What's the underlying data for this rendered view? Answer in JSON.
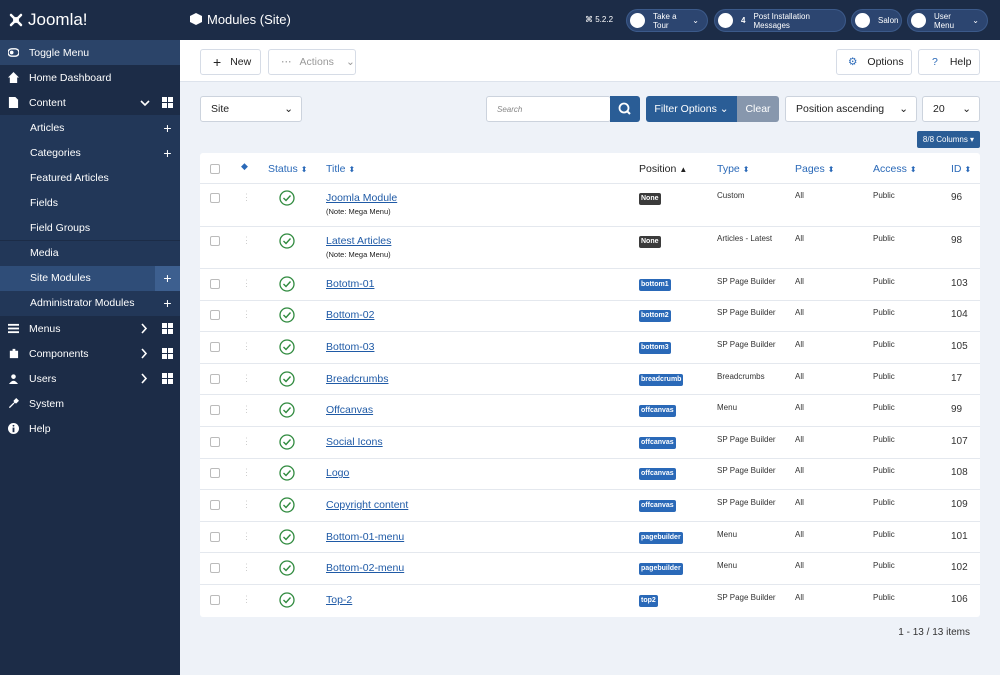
{
  "brand": "Joomla!",
  "header": {
    "title": "Modules (Site)",
    "version": "5.2.2",
    "tour": "Take a Tour",
    "notification_count": 4,
    "post_install": "Post Installation Messages",
    "salon": "Salon",
    "user_menu": "User Menu"
  },
  "sidebar": {
    "toggle": "Toggle Menu",
    "home": "Home Dashboard",
    "content": "Content",
    "content_children": [
      "Articles",
      "Categories",
      "Featured Articles",
      "Fields",
      "Field Groups",
      "Media",
      "Site Modules",
      "Administrator Modules"
    ],
    "menus": "Menus",
    "components": "Components",
    "users": "Users",
    "system": "System",
    "help": "Help"
  },
  "toolbar": {
    "new": "New",
    "actions": "Actions",
    "options": "Options",
    "help": "Help"
  },
  "filters": {
    "client": "Site",
    "search_placeholder": "Search",
    "filter_options": "Filter Options",
    "clear": "Clear",
    "ordering": "Position ascending",
    "limit": 20,
    "columns": "8/8 Columns"
  },
  "table": {
    "headers": [
      "Status",
      "Title",
      "Position",
      "Type",
      "Pages",
      "Access",
      "ID"
    ],
    "rows": [
      {
        "title": "Joomla Module",
        "note": "(Note: Mega Menu)",
        "position": "None",
        "position_color": "#3b3b3b",
        "type": "Custom",
        "pages": "All",
        "access": "Public",
        "id": 96
      },
      {
        "title": "Latest Articles",
        "note": "(Note: Mega Menu)",
        "position": "None",
        "position_color": "#3b3b3b",
        "type": "Articles - Latest",
        "pages": "All",
        "access": "Public",
        "id": 98
      },
      {
        "title": "Bototm-01",
        "position": "bottom1",
        "position_color": "#2a69b8",
        "type": "SP Page Builder",
        "pages": "All",
        "access": "Public",
        "id": 103
      },
      {
        "title": "Bottom-02",
        "position": "bottom2",
        "position_color": "#2a69b8",
        "type": "SP Page Builder",
        "pages": "All",
        "access": "Public",
        "id": 104
      },
      {
        "title": "Bottom-03",
        "position": "bottom3",
        "position_color": "#2a69b8",
        "type": "SP Page Builder",
        "pages": "All",
        "access": "Public",
        "id": 105
      },
      {
        "title": "Breadcrumbs",
        "position": "breadcrumb",
        "position_color": "#2a69b8",
        "type": "Breadcrumbs",
        "pages": "All",
        "access": "Public",
        "id": 17
      },
      {
        "title": "Offcanvas",
        "position": "offcanvas",
        "position_color": "#2a69b8",
        "type": "Menu",
        "pages": "All",
        "access": "Public",
        "id": 99
      },
      {
        "title": "Social Icons",
        "position": "offcanvas",
        "position_color": "#2a69b8",
        "type": "SP Page Builder",
        "pages": "All",
        "access": "Public",
        "id": 107
      },
      {
        "title": "Logo",
        "position": "offcanvas",
        "position_color": "#2a69b8",
        "type": "SP Page Builder",
        "pages": "All",
        "access": "Public",
        "id": 108
      },
      {
        "title": "Copyright content",
        "position": "offcanvas",
        "position_color": "#2a69b8",
        "type": "SP Page Builder",
        "pages": "All",
        "access": "Public",
        "id": 109
      },
      {
        "title": "Bottom-01-menu",
        "position": "pagebuilder",
        "position_color": "#2a69b8",
        "type": "Menu",
        "pages": "All",
        "access": "Public",
        "id": 101
      },
      {
        "title": "Bottom-02-menu",
        "position": "pagebuilder",
        "position_color": "#2a69b8",
        "type": "Menu",
        "pages": "All",
        "access": "Public",
        "id": 102
      },
      {
        "title": "Top-2",
        "position": "top2",
        "position_color": "#2a69b8",
        "type": "SP Page Builder",
        "pages": "All",
        "access": "Public",
        "id": 106
      }
    ]
  },
  "pagination": "1 - 13 / 13 items"
}
